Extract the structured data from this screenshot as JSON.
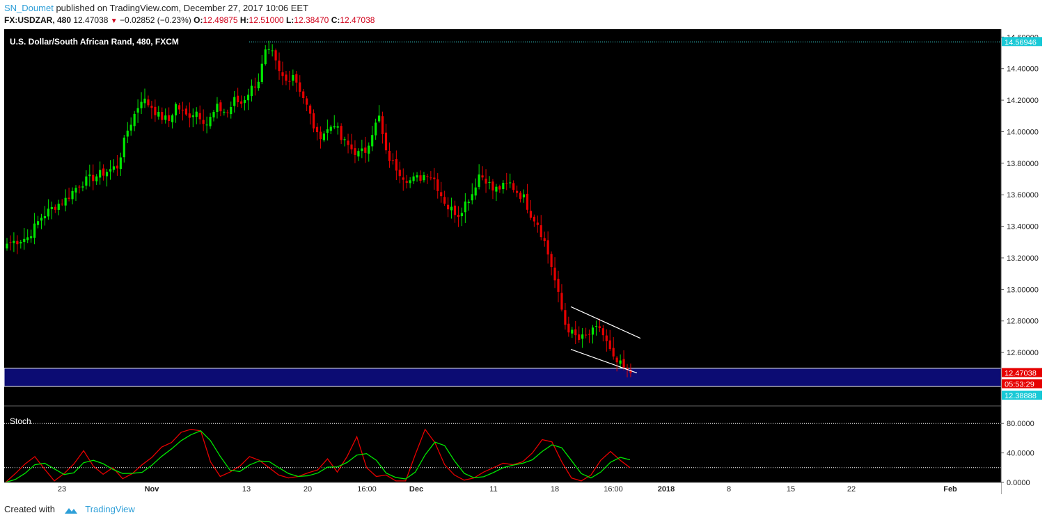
{
  "header": {
    "author": "SN_Doumet",
    "published": "published on TradingView.com, December 27, 2017 10:06 EET",
    "symbol": "FX:USDZAR, 480",
    "price": "12.47038",
    "change": "−0.02852 (−0.23%)",
    "o_label": "O:",
    "o_value": "12.49875",
    "h_label": "H:",
    "h_value": "12.51000",
    "l_label": "L:",
    "l_value": "12.38470",
    "c_label": "C:",
    "c_value": "12.47038"
  },
  "footer": {
    "created_with": "Created with",
    "brand": "TradingView"
  },
  "colors": {
    "up": "#00e600",
    "down": "#e60000",
    "stoch_k": "#00e600",
    "stoch_d": "#e60000",
    "zone": "#0c0c73",
    "highline": "#3ff1f1",
    "axis_bg": "#ffffff"
  },
  "chart_data": {
    "type": "candlestick",
    "title": "U.S. Dollar/South African Rand, 480, FXCM",
    "ylim": [
      12.27,
      14.65
    ],
    "y_ticks": [
      "14.60000",
      "14.40000",
      "14.20000",
      "14.00000",
      "13.80000",
      "13.60000",
      "13.40000",
      "13.20000",
      "13.00000",
      "12.80000",
      "12.60000"
    ],
    "x_ticks": [
      "23",
      "Nov",
      "13",
      "20",
      "16:00",
      "Dec",
      "11",
      "18",
      "16:00",
      "2018",
      "8",
      "15",
      "22",
      "Feb"
    ],
    "price_labels": {
      "high_marker": "14.56946",
      "current": "12.47038",
      "countdown": "05:53:29",
      "low_marker": "12.38888"
    },
    "zone": [
      12.385,
      12.5
    ],
    "trend_lines": [
      {
        "from": [
          12.89,
          "upper-start"
        ],
        "to": [
          12.69,
          "upper-end"
        ]
      },
      {
        "from": [
          12.62,
          "lower-start"
        ],
        "to": [
          12.47,
          "lower-end"
        ]
      }
    ],
    "close_path": [
      [
        0,
        13.29
      ],
      [
        6,
        13.33
      ],
      [
        10,
        13.46
      ],
      [
        14,
        13.53
      ],
      [
        17,
        13.57
      ],
      [
        21,
        13.67
      ],
      [
        25,
        13.71
      ],
      [
        28,
        13.74
      ],
      [
        32,
        13.78
      ],
      [
        35,
        14.01
      ],
      [
        39,
        14.21
      ],
      [
        42,
        14.16
      ],
      [
        44,
        14.1
      ],
      [
        47,
        14.07
      ],
      [
        49,
        14.17
      ],
      [
        52,
        14.1
      ],
      [
        55,
        14.13
      ],
      [
        58,
        14.05
      ],
      [
        61,
        14.15
      ],
      [
        64,
        14.12
      ],
      [
        66,
        14.2
      ],
      [
        68,
        14.18
      ],
      [
        70,
        14.25
      ],
      [
        73,
        14.33
      ],
      [
        75,
        14.5
      ],
      [
        77,
        14.49
      ],
      [
        79,
        14.37
      ],
      [
        81,
        14.32
      ],
      [
        83,
        14.37
      ],
      [
        86,
        14.22
      ],
      [
        88,
        14.1
      ],
      [
        90,
        13.97
      ],
      [
        93,
        14.01
      ],
      [
        95,
        14.06
      ],
      [
        97,
        13.95
      ],
      [
        100,
        13.89
      ],
      [
        102,
        13.86
      ],
      [
        104,
        13.88
      ],
      [
        106,
        14.0
      ],
      [
        108,
        14.09
      ],
      [
        110,
        13.86
      ],
      [
        112,
        13.8
      ],
      [
        115,
        13.72
      ],
      [
        117,
        13.69
      ],
      [
        120,
        13.71
      ],
      [
        122,
        13.74
      ],
      [
        124,
        13.7
      ],
      [
        126,
        13.6
      ],
      [
        128,
        13.52
      ],
      [
        131,
        13.48
      ],
      [
        133,
        13.55
      ],
      [
        135,
        13.61
      ],
      [
        137,
        13.73
      ],
      [
        139,
        13.7
      ],
      [
        141,
        13.63
      ],
      [
        144,
        13.65
      ],
      [
        146,
        13.67
      ],
      [
        148,
        13.62
      ],
      [
        150,
        13.58
      ],
      [
        152,
        13.48
      ],
      [
        154,
        13.42
      ],
      [
        156,
        13.3
      ],
      [
        158,
        13.15
      ],
      [
        160,
        12.96
      ],
      [
        162,
        12.78
      ],
      [
        164,
        12.72
      ],
      [
        166,
        12.68
      ],
      [
        168,
        12.7
      ],
      [
        170,
        12.73
      ],
      [
        172,
        12.76
      ],
      [
        174,
        12.66
      ],
      [
        176,
        12.55
      ],
      [
        178,
        12.52
      ],
      [
        180,
        12.47
      ]
    ],
    "stoch": {
      "k": [
        0,
        12,
        25,
        35,
        18,
        2,
        12,
        25,
        43,
        22,
        11,
        20,
        5,
        12,
        24,
        34,
        48,
        54,
        68,
        72,
        70,
        28,
        8,
        14,
        22,
        35,
        30,
        20,
        10,
        6,
        8,
        13,
        17,
        32,
        14,
        35,
        62,
        20,
        8,
        10,
        2,
        2,
        38,
        72,
        54,
        24,
        10,
        3,
        6,
        14,
        20,
        26,
        24,
        28,
        40,
        58,
        55,
        28,
        6,
        2,
        10,
        30,
        42,
        30,
        20
      ],
      "ylim": [
        0,
        100
      ],
      "y_ticks": [
        "80.0000",
        "40.0000",
        "0.0000"
      ],
      "label": "Stoch"
    }
  }
}
